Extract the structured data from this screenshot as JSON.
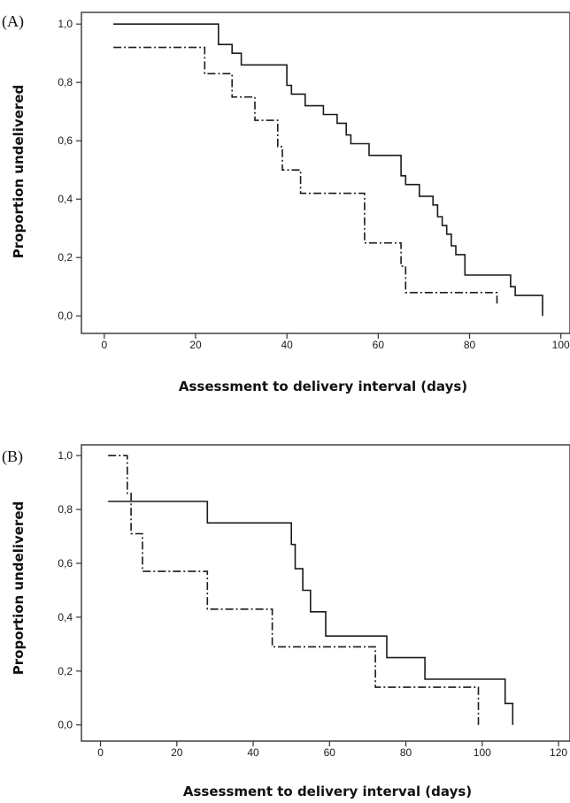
{
  "colors": {
    "line": "#1a1a1a",
    "frame": "#333333",
    "background": "#ffffff"
  },
  "chart_data": [
    {
      "type": "line",
      "panel_label": "(A)",
      "xlabel": "Assessment to delivery interval (days)",
      "ylabel": "Proportion undelivered",
      "xlim": [
        -5,
        102
      ],
      "ylim": [
        -0.06,
        1.04
      ],
      "x_ticks": [
        0,
        20,
        40,
        60,
        80,
        100
      ],
      "x_tick_labels": [
        "0",
        "20",
        "40",
        "60",
        "80",
        "100"
      ],
      "y_ticks": [
        0,
        0.2,
        0.4,
        0.6,
        0.8,
        1.0
      ],
      "y_tick_labels": [
        "0,0",
        "0,2",
        "0,4",
        "0,6",
        "0,8",
        "1,0"
      ],
      "grid": false,
      "series": [
        {
          "line_style": "solid",
          "step": true,
          "points": [
            [
              2,
              1.0
            ],
            [
              25,
              0.93
            ],
            [
              28,
              0.9
            ],
            [
              30,
              0.86
            ],
            [
              40,
              0.79
            ],
            [
              41,
              0.76
            ],
            [
              44,
              0.72
            ],
            [
              48,
              0.69
            ],
            [
              51,
              0.66
            ],
            [
              53,
              0.62
            ],
            [
              54,
              0.59
            ],
            [
              58,
              0.55
            ],
            [
              65,
              0.48
            ],
            [
              66,
              0.45
            ],
            [
              69,
              0.41
            ],
            [
              72,
              0.38
            ],
            [
              73,
              0.34
            ],
            [
              74,
              0.31
            ],
            [
              75,
              0.28
            ],
            [
              76,
              0.24
            ],
            [
              77,
              0.21
            ],
            [
              79,
              0.14
            ],
            [
              89,
              0.1
            ],
            [
              90,
              0.07
            ],
            [
              96,
              0.0
            ]
          ]
        },
        {
          "line_style": "dash-dot",
          "step": true,
          "points": [
            [
              2,
              0.92
            ],
            [
              22,
              0.83
            ],
            [
              28,
              0.75
            ],
            [
              33,
              0.67
            ],
            [
              38,
              0.58
            ],
            [
              39,
              0.5
            ],
            [
              43,
              0.42
            ],
            [
              57,
              0.25
            ],
            [
              65,
              0.17
            ],
            [
              66,
              0.08
            ],
            [
              86,
              0.04
            ]
          ]
        }
      ]
    },
    {
      "type": "line",
      "panel_label": "(B)",
      "xlabel": "Assessment to delivery interval (days)",
      "ylabel": "Proportion undelivered",
      "xlim": [
        -5,
        123
      ],
      "ylim": [
        -0.06,
        1.04
      ],
      "x_ticks": [
        0,
        20,
        40,
        60,
        80,
        100,
        120
      ],
      "x_tick_labels": [
        "0",
        "20",
        "40",
        "60",
        "80",
        "100",
        "120"
      ],
      "y_ticks": [
        0,
        0.2,
        0.4,
        0.6,
        0.8,
        1.0
      ],
      "y_tick_labels": [
        "0,0",
        "0,2",
        "0,4",
        "0,6",
        "0,8",
        "1,0"
      ],
      "grid": false,
      "series": [
        {
          "line_style": "solid",
          "step": true,
          "points": [
            [
              2,
              0.83
            ],
            [
              28,
              0.75
            ],
            [
              50,
              0.67
            ],
            [
              51,
              0.58
            ],
            [
              53,
              0.5
            ],
            [
              55,
              0.42
            ],
            [
              59,
              0.33
            ],
            [
              75,
              0.25
            ],
            [
              85,
              0.17
            ],
            [
              106,
              0.08
            ],
            [
              108,
              0.0
            ]
          ]
        },
        {
          "line_style": "dash-dot",
          "step": true,
          "points": [
            [
              2,
              1.0
            ],
            [
              7,
              0.86
            ],
            [
              8,
              0.71
            ],
            [
              11,
              0.57
            ],
            [
              28,
              0.43
            ],
            [
              45,
              0.29
            ],
            [
              72,
              0.14
            ],
            [
              99,
              0.0
            ]
          ]
        }
      ]
    }
  ]
}
